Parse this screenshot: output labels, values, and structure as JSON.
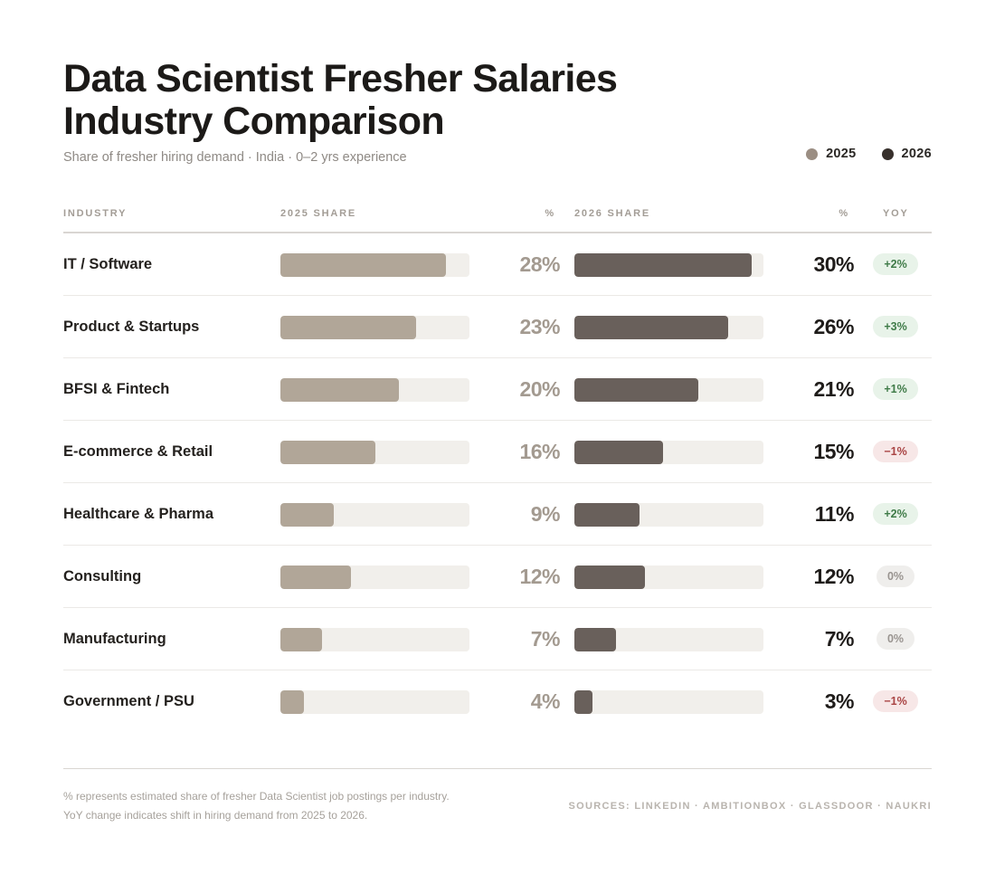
{
  "title_line1": "Data Scientist Fresher Salaries",
  "title_line2": "Industry Comparison",
  "subtitle": "Share of fresher hiring demand · India · 0–2 yrs experience",
  "legend": [
    {
      "label": "2025",
      "color": "#9b8e83"
    },
    {
      "label": "2026",
      "color": "#37302c"
    }
  ],
  "columns": {
    "industry": "INDUSTRY",
    "share_2025": "2025 SHARE",
    "pct_2025": "%",
    "share_2026": "2026 SHARE",
    "pct_2026": "%",
    "yoy": "YOY"
  },
  "colors": {
    "bar_2025": "#b1a698",
    "bar_2026": "#69605b",
    "track": "#f1efeb",
    "yoy_positive": "#3f7b48",
    "yoy_negative": "#a94444",
    "yoy_neutral": "#999490"
  },
  "chart_data": {
    "type": "bar",
    "orientation": "horizontal",
    "categories": [
      "IT / Software",
      "Product & Startups",
      "BFSI & Fintech",
      "E-commerce & Retail",
      "Healthcare & Pharma",
      "Consulting",
      "Manufacturing",
      "Government / PSU"
    ],
    "series": [
      {
        "name": "2025",
        "values": [
          28,
          23,
          20,
          16,
          9,
          12,
          7,
          4
        ]
      },
      {
        "name": "2026",
        "values": [
          30,
          26,
          21,
          15,
          11,
          12,
          7,
          3
        ]
      }
    ],
    "xlim": [
      0,
      32
    ],
    "grid": false,
    "legend_position": "top-right"
  },
  "rows": [
    {
      "industry": "IT / Software",
      "pct_2025": "28%",
      "pct_2026": "30%",
      "yoy": "+2%",
      "trend": "pos"
    },
    {
      "industry": "Product & Startups",
      "pct_2025": "23%",
      "pct_2026": "26%",
      "yoy": "+3%",
      "trend": "pos"
    },
    {
      "industry": "BFSI & Fintech",
      "pct_2025": "20%",
      "pct_2026": "21%",
      "yoy": "+1%",
      "trend": "pos"
    },
    {
      "industry": "E-commerce & Retail",
      "pct_2025": "16%",
      "pct_2026": "15%",
      "yoy": "−1%",
      "trend": "neg"
    },
    {
      "industry": "Healthcare & Pharma",
      "pct_2025": "9%",
      "pct_2026": "11%",
      "yoy": "+2%",
      "trend": "pos"
    },
    {
      "industry": "Consulting",
      "pct_2025": "12%",
      "pct_2026": "12%",
      "yoy": "0%",
      "trend": "neu"
    },
    {
      "industry": "Manufacturing",
      "pct_2025": "7%",
      "pct_2026": "7%",
      "yoy": "0%",
      "trend": "neu"
    },
    {
      "industry": "Government / PSU",
      "pct_2025": "4%",
      "pct_2026": "3%",
      "yoy": "−1%",
      "trend": "neg"
    }
  ],
  "footer": {
    "note_line1": "% represents estimated share of fresher Data Scientist job postings per industry.",
    "note_line2": "YoY change indicates shift in hiring demand from 2025 to 2026.",
    "sources": "SOURCES: LINKEDIN · AMBITIONBOX · GLASSDOOR · NAUKRI"
  }
}
